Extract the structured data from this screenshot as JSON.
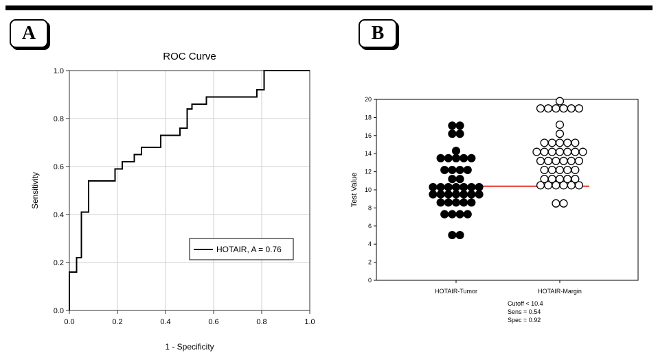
{
  "panels": [
    {
      "label": "A"
    },
    {
      "label": "B"
    }
  ],
  "chart_data": [
    {
      "type": "line",
      "title": "ROC Curve",
      "xlabel": "1 - Specificity",
      "ylabel": "Sensitivity",
      "xlim": [
        0,
        1
      ],
      "ylim": [
        0,
        1
      ],
      "xticks": [
        "0.0",
        "0.2",
        "0.4",
        "0.6",
        "0.8",
        "1.0"
      ],
      "yticks": [
        "0.0",
        "0.2",
        "0.4",
        "0.6",
        "0.8",
        "1.0"
      ],
      "grid": true,
      "legend": {
        "position": "bottom-right",
        "entries": [
          "HOTAIR, A = 0.76"
        ]
      },
      "series": [
        {
          "name": "HOTAIR, A = 0.76",
          "color": "#000000",
          "step": true,
          "x": [
            0.0,
            0.0,
            0.03,
            0.03,
            0.05,
            0.05,
            0.08,
            0.08,
            0.19,
            0.19,
            0.22,
            0.22,
            0.27,
            0.27,
            0.3,
            0.3,
            0.38,
            0.38,
            0.46,
            0.46,
            0.49,
            0.49,
            0.51,
            0.51,
            0.57,
            0.57,
            0.78,
            0.78,
            0.81,
            0.81,
            1.0
          ],
          "y": [
            0.0,
            0.16,
            0.16,
            0.22,
            0.22,
            0.41,
            0.41,
            0.54,
            0.54,
            0.59,
            0.59,
            0.62,
            0.62,
            0.65,
            0.65,
            0.68,
            0.68,
            0.73,
            0.73,
            0.76,
            0.76,
            0.84,
            0.84,
            0.86,
            0.86,
            0.89,
            0.89,
            0.92,
            0.92,
            1.0,
            1.0
          ]
        }
      ]
    },
    {
      "type": "scatter",
      "title": "",
      "xlabel": "",
      "ylabel": "Test Value",
      "ylim": [
        0,
        20
      ],
      "yticks": [
        "0",
        "2",
        "4",
        "6",
        "8",
        "10",
        "12",
        "14",
        "16",
        "18",
        "20"
      ],
      "categories": [
        "HOTAIR-Tumor",
        "HOTAIR-Margin"
      ],
      "cutoff_line": {
        "value": 10.4,
        "color": "#e8332a"
      },
      "series": [
        {
          "category": "HOTAIR-Tumor",
          "fill": "#000000",
          "values": [
            17.1,
            17.1,
            16.2,
            16.2,
            14.3,
            13.5,
            13.5,
            13.5,
            13.5,
            13.5,
            12.2,
            12.2,
            12.2,
            12.2,
            11.2,
            11.2,
            10.3,
            10.3,
            10.3,
            10.3,
            10.3,
            10.3,
            10.3,
            9.5,
            9.5,
            9.5,
            9.5,
            9.5,
            9.5,
            9.5,
            8.6,
            8.6,
            8.6,
            8.6,
            8.6,
            7.3,
            7.3,
            7.3,
            7.3,
            5.0,
            5.0
          ]
        },
        {
          "category": "HOTAIR-Margin",
          "fill": "#ffffff",
          "values": [
            19.8,
            19.0,
            19.0,
            19.0,
            19.0,
            19.0,
            19.0,
            17.2,
            16.2,
            15.2,
            15.2,
            15.2,
            15.2,
            15.2,
            14.2,
            14.2,
            14.2,
            14.2,
            14.2,
            14.2,
            14.2,
            13.2,
            13.2,
            13.2,
            13.2,
            13.2,
            13.2,
            12.2,
            12.2,
            12.2,
            12.2,
            12.2,
            11.2,
            11.2,
            11.2,
            11.2,
            11.2,
            10.5,
            10.5,
            10.5,
            10.5,
            10.5,
            10.5,
            8.5,
            8.5
          ]
        }
      ],
      "annotation": [
        "Cutoff < 10.4",
        "Sens = 0.54",
        "Spec = 0.92"
      ]
    }
  ]
}
